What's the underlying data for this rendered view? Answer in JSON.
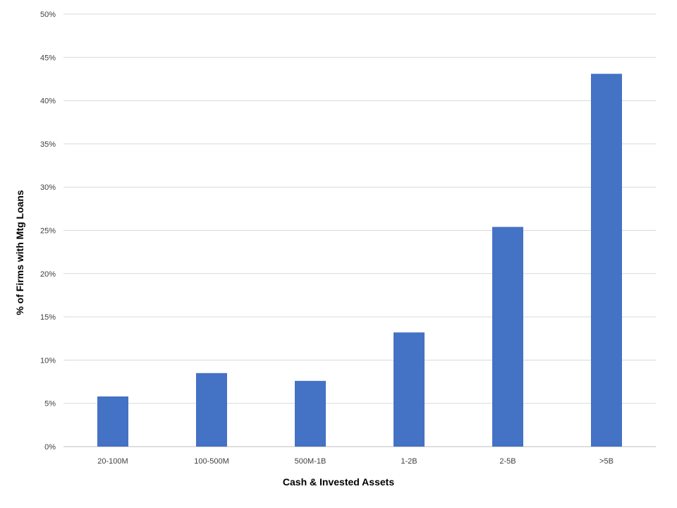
{
  "chart_data": {
    "type": "bar",
    "title": "",
    "xlabel": "Cash & Invested Assets",
    "ylabel": "% of Firms with Mtg Loans",
    "categories": [
      "20-100M",
      "100-500M",
      "500M-1B",
      "1-2B",
      "2-5B",
      ">5B"
    ],
    "values": [
      5.8,
      8.5,
      7.6,
      13.2,
      25.4,
      43.1
    ],
    "ylim": [
      0,
      50
    ],
    "yticks": [
      0,
      5,
      10,
      15,
      20,
      25,
      30,
      35,
      40,
      45,
      50
    ],
    "ytick_labels": [
      "0%",
      "5%",
      "10%",
      "15%",
      "20%",
      "25%",
      "30%",
      "35%",
      "40%",
      "45%",
      "50%"
    ],
    "grid": true,
    "legend": "none",
    "bar_color": "#4472c4"
  }
}
